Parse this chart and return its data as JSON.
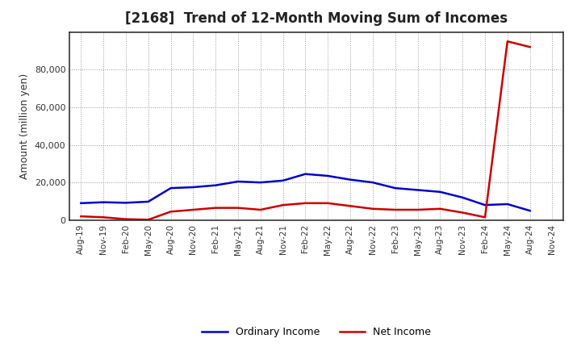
{
  "title": "[2168]  Trend of 12-Month Moving Sum of Incomes",
  "ylabel": "Amount (million yen)",
  "x_labels": [
    "Aug-19",
    "Nov-19",
    "Feb-20",
    "May-20",
    "Aug-20",
    "Nov-20",
    "Feb-21",
    "May-21",
    "Aug-21",
    "Nov-21",
    "Feb-22",
    "May-22",
    "Aug-22",
    "Nov-22",
    "Feb-23",
    "May-23",
    "Aug-23",
    "Nov-23",
    "Feb-24",
    "May-24",
    "Aug-24",
    "Nov-24"
  ],
  "ordinary_income": [
    9000,
    9500,
    9200,
    9800,
    17000,
    17500,
    18500,
    20500,
    20000,
    21000,
    24500,
    23500,
    21500,
    20000,
    17000,
    16000,
    15000,
    12000,
    8000,
    8500,
    5000,
    null
  ],
  "net_income": [
    2000,
    1500,
    500,
    200,
    4500,
    5500,
    6500,
    6500,
    5500,
    8000,
    9000,
    9000,
    7500,
    6000,
    5500,
    5500,
    6000,
    4000,
    1500,
    95000,
    92000,
    null
  ],
  "ordinary_color": "#0000cc",
  "net_color": "#cc0000",
  "ylim": [
    0,
    100000
  ],
  "yticks": [
    0,
    20000,
    40000,
    60000,
    80000
  ],
  "ytick_labels": [
    "0",
    "20,000",
    "40,000",
    "60,000",
    "80,000"
  ],
  "background_color": "#ffffff",
  "grid_color": "#999999",
  "legend_ordinary": "Ordinary Income",
  "legend_net": "Net Income",
  "line_width": 1.8
}
